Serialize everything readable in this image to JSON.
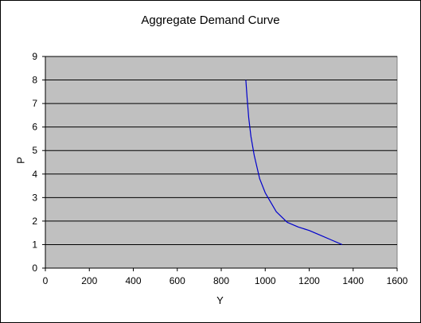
{
  "chart_data": {
    "type": "line",
    "title": "Aggregate Demand Curve",
    "xlabel": "Y",
    "ylabel": "P",
    "xlim": [
      0,
      1600
    ],
    "ylim": [
      0,
      9
    ],
    "x_ticks": [
      "0",
      "200",
      "400",
      "600",
      "800",
      "1000",
      "1200",
      "1400",
      "1600"
    ],
    "y_ticks": [
      "0",
      "1",
      "2",
      "3",
      "4",
      "5",
      "6",
      "7",
      "8",
      "9"
    ],
    "grid": "horizontal",
    "legend": "none",
    "series": [
      {
        "x": [
          1350,
          1300,
          1250,
          1200,
          1150,
          1100,
          1050,
          1000,
          975,
          950,
          935,
          925,
          918,
          912
        ],
        "y": [
          1,
          1.2,
          1.4,
          1.6,
          1.75,
          1.95,
          2.4,
          3.2,
          3.8,
          4.8,
          5.6,
          6.4,
          7.2,
          8
        ],
        "color": "#0000cc"
      }
    ]
  },
  "colors": {
    "plot_area": "#c0c0c0",
    "gridline": "#000000",
    "series_line": "#0000cc"
  }
}
